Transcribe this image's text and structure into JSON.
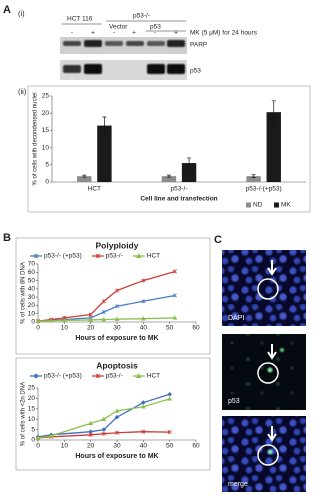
{
  "panels": {
    "a": "A",
    "a_i": "(i)",
    "a_ii": "(ii)",
    "b": "B",
    "c": "C"
  },
  "blot": {
    "cell_line": "HCT 116",
    "knockout": "p53-/-",
    "vector": "Vector",
    "p53_transfection": "p53",
    "treatment": "MK (5 μM) for 24 hours",
    "lanes": [
      "-",
      "+",
      "-",
      "+",
      "-",
      "+"
    ],
    "rows": [
      "PARP",
      "p53"
    ]
  },
  "microscopy": {
    "labels": [
      "DAPI",
      "p53",
      "merge"
    ]
  },
  "chart_data": [
    {
      "type": "bar",
      "y_label": "% of cells with decondensed nuclei",
      "x_label": "Cell line and transfection",
      "categories": [
        "HCT",
        "p53-/-",
        "p53-/-(+p53)"
      ],
      "series": [
        {
          "name": "ND",
          "color": "#8c8c8c",
          "values": [
            1.7,
            1.7,
            1.7
          ],
          "errors": [
            0.3,
            0.3,
            0.4
          ]
        },
        {
          "name": "MK",
          "color": "#1a1a1a",
          "values": [
            16.4,
            5.5,
            20.3
          ],
          "errors": [
            2.5,
            1.5,
            3.3
          ]
        }
      ],
      "ylim": [
        0,
        25
      ],
      "yticks": [
        0,
        5,
        10,
        15,
        20,
        25
      ],
      "grid": false,
      "legend": "bottom-right"
    },
    {
      "type": "line",
      "title": "Polyploidy",
      "y_label": "% of cells with 8N DNA",
      "x_label": "Hours of exposure to MK",
      "x": [
        0,
        5,
        10,
        20,
        25,
        30,
        40,
        52
      ],
      "series": [
        {
          "name": "p53-/- (+p53)",
          "color": "#4a7cc4",
          "marker": "cross",
          "values": [
            1,
            2,
            3,
            5,
            12,
            19,
            25,
            32
          ]
        },
        {
          "name": "p53-/-",
          "color": "#cc3b33",
          "marker": "cross",
          "values": [
            1,
            3,
            5,
            9,
            25,
            38,
            50,
            61
          ]
        },
        {
          "name": "HCT",
          "color": "#8cbf4a",
          "marker": "triangle",
          "values": [
            1,
            1.5,
            2,
            2.5,
            3,
            3.5,
            4,
            5
          ]
        }
      ],
      "xlim": [
        0,
        60
      ],
      "xticks": [
        0,
        10,
        20,
        30,
        40,
        50,
        60
      ],
      "ylim": [
        0,
        70
      ],
      "yticks": [
        0,
        10,
        20,
        30,
        40,
        50,
        60,
        70
      ],
      "grid": false,
      "legend": "top"
    },
    {
      "type": "line",
      "title": "Apoptosis",
      "y_label": "% of cells with <2n DNA",
      "x_label": "Hours of exposure to MK",
      "x": [
        0,
        5,
        20,
        25,
        30,
        40,
        50
      ],
      "series": [
        {
          "name": "p53-/- (+p53)",
          "color": "#3f6fc2",
          "marker": "diamond",
          "values": [
            1.5,
            2.5,
            4,
            5,
            11,
            18,
            22
          ]
        },
        {
          "name": "p53-/-",
          "color": "#cc3b33",
          "marker": "cross",
          "values": [
            1,
            1.5,
            2.5,
            3,
            3.5,
            4,
            3.8
          ]
        },
        {
          "name": "HCT",
          "color": "#8cbf4a",
          "marker": "triangle",
          "values": [
            1,
            2,
            8,
            10,
            14,
            16,
            19.8
          ]
        }
      ],
      "xlim": [
        0,
        60
      ],
      "xticks": [
        0,
        10,
        20,
        30,
        40,
        50,
        60
      ],
      "ylim": [
        0,
        25
      ],
      "yticks": [
        0,
        5,
        10,
        15,
        20,
        25
      ],
      "grid": false,
      "legend": "top"
    }
  ]
}
